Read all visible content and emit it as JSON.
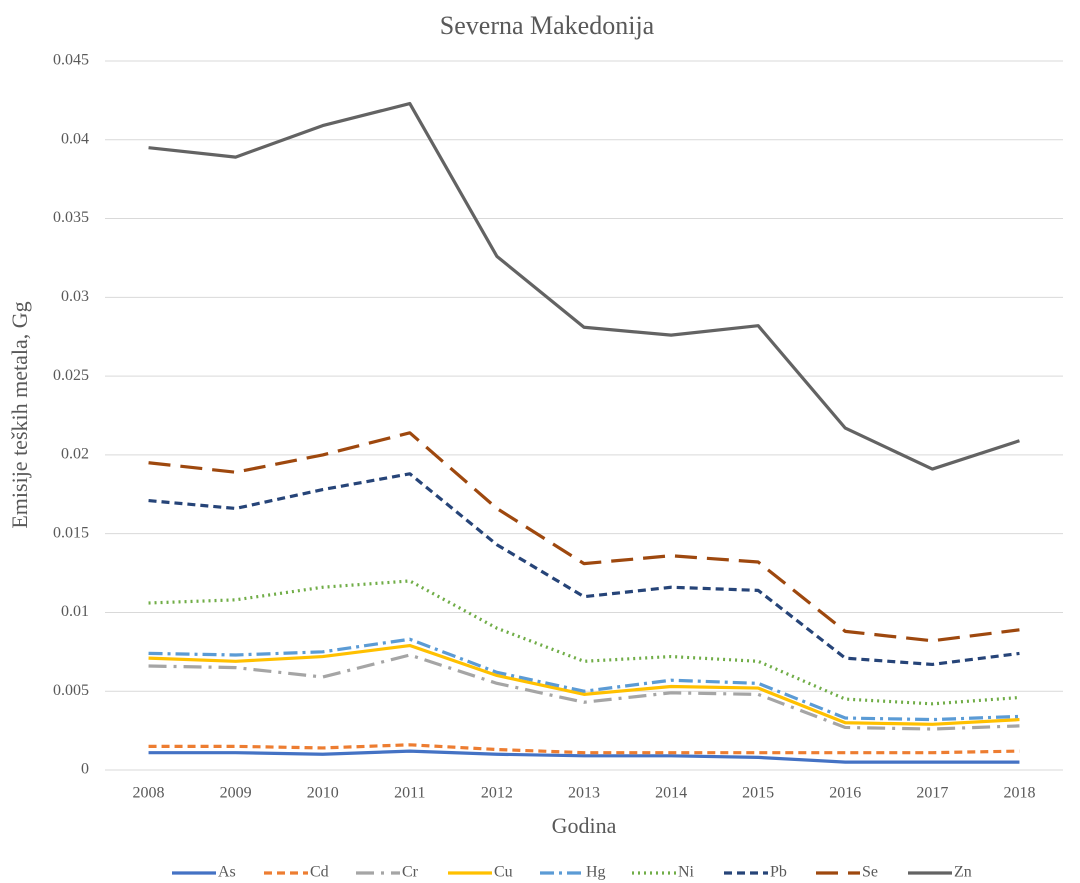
{
  "chart_data": {
    "type": "line",
    "title": "Severna Makedonija",
    "x_label": "Godina",
    "y_label": "Emisije teških metala, Gg",
    "categories": [
      "2008",
      "2009",
      "2010",
      "2011",
      "2012",
      "2013",
      "2014",
      "2015",
      "2016",
      "2017",
      "2018"
    ],
    "ylim": [
      0,
      0.045
    ],
    "yticks": [
      0,
      0.005,
      0.01,
      0.015,
      0.02,
      0.025,
      0.03,
      0.035,
      0.04,
      0.045
    ],
    "grid": true,
    "legend": "bottom",
    "series": [
      {
        "name": "As",
        "color": "#4472c4",
        "dash": "solid",
        "values": [
          0.0011,
          0.0011,
          0.001,
          0.0012,
          0.001,
          0.0009,
          0.0009,
          0.0008,
          0.0005,
          0.0005,
          0.0005
        ]
      },
      {
        "name": "Cd",
        "color": "#ed7d31",
        "dash": "dash",
        "values": [
          0.0015,
          0.0015,
          0.0014,
          0.0016,
          0.0013,
          0.0011,
          0.0011,
          0.0011,
          0.0011,
          0.0011,
          0.0012
        ]
      },
      {
        "name": "Cr",
        "color": "#a5a5a5",
        "dash": "longdash-dot",
        "values": [
          0.0066,
          0.0065,
          0.0059,
          0.0073,
          0.0055,
          0.0043,
          0.0049,
          0.0048,
          0.0027,
          0.0026,
          0.0028
        ]
      },
      {
        "name": "Cu",
        "color": "#ffc000",
        "dash": "solid",
        "values": [
          0.0071,
          0.0069,
          0.0072,
          0.0079,
          0.006,
          0.0048,
          0.0053,
          0.0052,
          0.003,
          0.0029,
          0.0032
        ]
      },
      {
        "name": "Hg",
        "color": "#5b9bd5",
        "dash": "dashdot",
        "values": [
          0.0074,
          0.0073,
          0.0075,
          0.0083,
          0.0062,
          0.005,
          0.0057,
          0.0055,
          0.0033,
          0.0032,
          0.0034
        ]
      },
      {
        "name": "Ni",
        "color": "#70ad47",
        "dash": "dot",
        "values": [
          0.0106,
          0.0108,
          0.0116,
          0.012,
          0.009,
          0.0069,
          0.0072,
          0.0069,
          0.0045,
          0.0042,
          0.0046
        ]
      },
      {
        "name": "Pb",
        "color": "#264478",
        "dash": "dash",
        "values": [
          0.0171,
          0.0166,
          0.0178,
          0.0188,
          0.0143,
          0.011,
          0.0116,
          0.0114,
          0.0071,
          0.0067,
          0.0074
        ]
      },
      {
        "name": "Se",
        "color": "#9e480e",
        "dash": "longdash",
        "values": [
          0.0195,
          0.0189,
          0.02,
          0.0214,
          0.0166,
          0.0131,
          0.0136,
          0.0132,
          0.0088,
          0.0082,
          0.0089
        ]
      },
      {
        "name": "Zn",
        "color": "#636363",
        "dash": "solid",
        "values": [
          0.0395,
          0.0389,
          0.0409,
          0.0423,
          0.0326,
          0.0281,
          0.0276,
          0.0282,
          0.0217,
          0.0191,
          0.0209
        ]
      }
    ]
  }
}
